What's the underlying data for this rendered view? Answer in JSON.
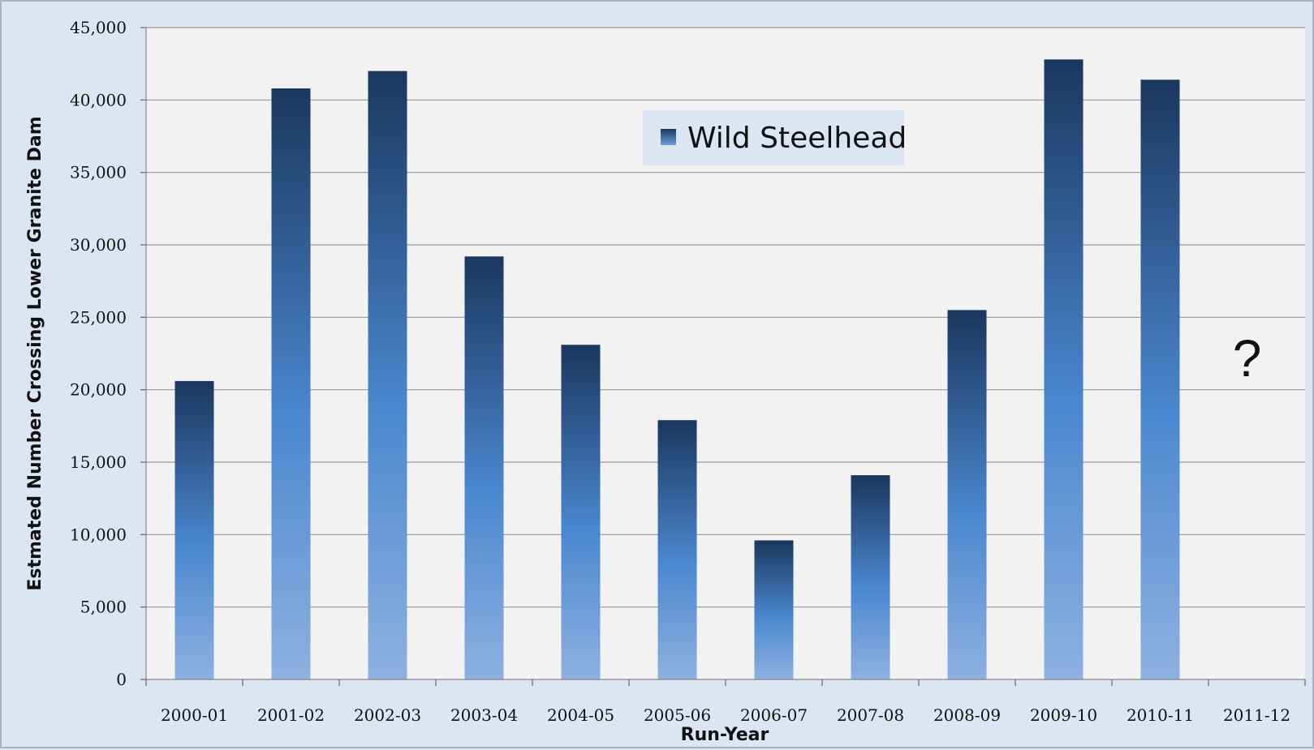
{
  "chart_data": {
    "type": "bar",
    "categories": [
      "2000-01",
      "2001-02",
      "2002-03",
      "2003-04",
      "2004-05",
      "2005-06",
      "2006-07",
      "2007-08",
      "2008-09",
      "2009-10",
      "2010-11",
      "2011-12"
    ],
    "series": [
      {
        "name": "Wild Steelhead",
        "values": [
          20600,
          40800,
          42000,
          29200,
          23100,
          17900,
          9600,
          14100,
          25500,
          42800,
          41400,
          null
        ]
      }
    ],
    "xlabel": "Run-Year",
    "ylabel": "Estmated Number Crossing Lower Granite Dam",
    "ylim": [
      0,
      45000
    ],
    "yticks": [
      0,
      5000,
      10000,
      15000,
      20000,
      25000,
      30000,
      35000,
      40000,
      45000
    ],
    "grid": true,
    "legend_position": "top-center",
    "annotations": [
      {
        "category": "2011-12",
        "text": "?"
      }
    ],
    "colors": {
      "bar_top": "#1b375e",
      "bar_mid": "#4a87cf",
      "bar_bottom": "#8db1e0",
      "plot_bg": "#f2f2f2",
      "frame_bg": "#dce6f2"
    }
  }
}
